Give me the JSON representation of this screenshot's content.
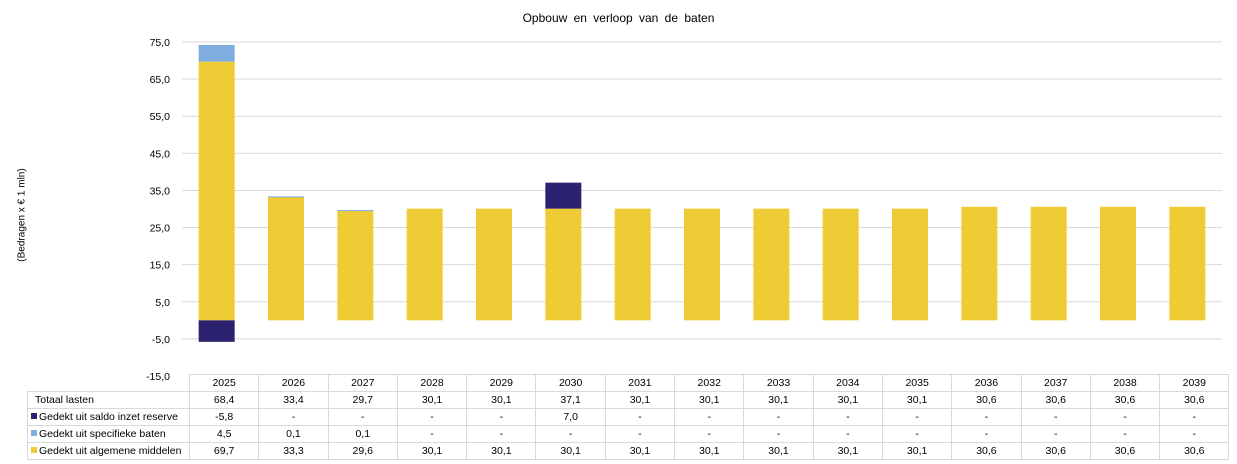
{
  "chart_data": {
    "type": "bar",
    "stacked": true,
    "title": "Opbouw en verloop van de baten",
    "ylabel": "(Bedragen x € 1 mln)",
    "xlabel": "",
    "ylim": [
      -15,
      75
    ],
    "yticks": [
      "-15,0",
      "-5,0",
      "5,0",
      "15,0",
      "25,0",
      "35,0",
      "45,0",
      "55,0",
      "65,0",
      "75,0"
    ],
    "ytick_values": [
      -15,
      -5,
      5,
      15,
      25,
      35,
      45,
      55,
      65,
      75
    ],
    "grid": true,
    "categories": [
      "2025",
      "2026",
      "2027",
      "2028",
      "2029",
      "2030",
      "2031",
      "2032",
      "2033",
      "2034",
      "2035",
      "2036",
      "2037",
      "2038",
      "2039"
    ],
    "total_row": {
      "name": "Totaal lasten",
      "labels": [
        "68,4",
        "33,4",
        "29,7",
        "30,1",
        "30,1",
        "37,1",
        "30,1",
        "30,1",
        "30,1",
        "30,1",
        "30,1",
        "30,6",
        "30,6",
        "30,6",
        "30,6"
      ]
    },
    "series": [
      {
        "name": "Gedekt uit saldo inzet reserve",
        "color": "#2b2370",
        "values": [
          -5.8,
          0,
          0,
          0,
          0,
          7.0,
          0,
          0,
          0,
          0,
          0,
          0,
          0,
          0,
          0
        ],
        "labels": [
          "-5,8",
          "-",
          "-",
          "-",
          "-",
          "7,0",
          "-",
          "-",
          "-",
          "-",
          "-",
          "-",
          "-",
          "-",
          "-"
        ]
      },
      {
        "name": "Gedekt uit specifieke baten",
        "color": "#7fadde",
        "values": [
          4.5,
          0.1,
          0.1,
          0,
          0,
          0,
          0,
          0,
          0,
          0,
          0,
          0,
          0,
          0,
          0
        ],
        "labels": [
          "4,5",
          "0,1",
          "0,1",
          "-",
          "-",
          "-",
          "-",
          "-",
          "-",
          "-",
          "-",
          "-",
          "-",
          "-",
          "-"
        ]
      },
      {
        "name": "Gedekt uit algemene middelen",
        "color": "#efcc35",
        "values": [
          69.7,
          33.3,
          29.6,
          30.1,
          30.1,
          30.1,
          30.1,
          30.1,
          30.1,
          30.1,
          30.1,
          30.6,
          30.6,
          30.6,
          30.6
        ],
        "labels": [
          "69,7",
          "33,3",
          "29,6",
          "30,1",
          "30,1",
          "30,1",
          "30,1",
          "30,1",
          "30,1",
          "30,1",
          "30,1",
          "30,6",
          "30,6",
          "30,6",
          "30,6"
        ]
      }
    ]
  }
}
